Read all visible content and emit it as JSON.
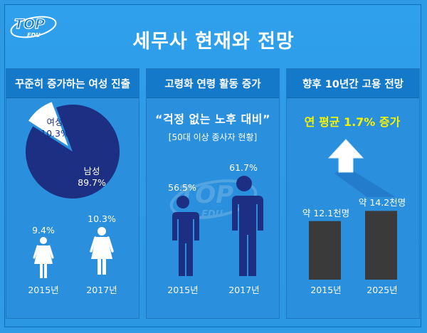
{
  "logo": {
    "top": "TOP",
    "sub": "EDU"
  },
  "title": "세무사 현재와 전망",
  "colors": {
    "background": "#2f9be6",
    "header": "#1579c9",
    "pie_dark": "#1d2f82",
    "bar": "#3a3a3a",
    "highlight": "#f4f400"
  },
  "panels": [
    {
      "heading": "꾸준히 증가하는 여성 진출",
      "pie": {
        "female_label": "여성",
        "female_value": "10.3%",
        "male_label": "남성",
        "male_value": "89.7%"
      },
      "icons": [
        {
          "value": "9.4%",
          "year": "2015년"
        },
        {
          "value": "10.3%",
          "year": "2017년"
        }
      ]
    },
    {
      "heading": "고령화 연령 활동 증가",
      "quote": "“걱정 없는 노후 대비”",
      "subtitle": "[50대 이상 종사자 현황]",
      "icons": [
        {
          "value": "56.5%",
          "year": "2015년"
        },
        {
          "value": "61.7%",
          "year": "2017년"
        }
      ]
    },
    {
      "heading": "향후 10년간 고용 전망",
      "highlight": "연 평균 1.7% 증가",
      "bars": [
        {
          "value": "약 12.1천명",
          "year": "2015년"
        },
        {
          "value": "약 14.2천명",
          "year": "2025년"
        }
      ]
    }
  ],
  "chart_data": [
    {
      "type": "pie",
      "title": "꾸준히 증가하는 여성 진출",
      "categories": [
        "여성",
        "남성"
      ],
      "values": [
        10.3,
        89.7
      ]
    },
    {
      "type": "bar",
      "title": "꾸준히 증가하는 여성 진출",
      "categories": [
        "2015년",
        "2017년"
      ],
      "values": [
        9.4,
        10.3
      ]
    },
    {
      "type": "bar",
      "title": "고령화 연령 활동 증가",
      "subtitle": "[50대 이상 종사자 현황]",
      "categories": [
        "2015년",
        "2017년"
      ],
      "values": [
        56.5,
        61.7
      ]
    },
    {
      "type": "bar",
      "title": "향후 10년간 고용 전망",
      "categories": [
        "2015년",
        "2025년"
      ],
      "values": [
        12.1,
        14.2
      ]
    }
  ]
}
